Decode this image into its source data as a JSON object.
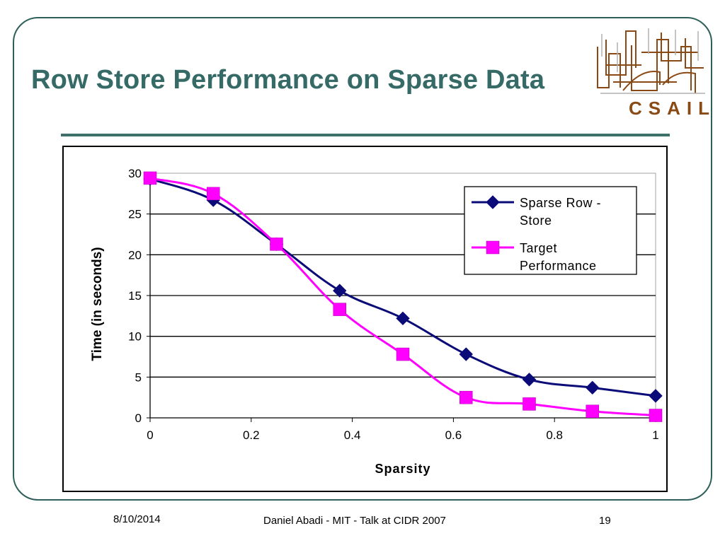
{
  "slide": {
    "title": "Row Store Performance on Sparse Data",
    "logo_text": "CSAIL",
    "footer_date": "8/10/2014",
    "footer_center": "Daniel Abadi - MIT - Talk at CIDR 2007",
    "page_number": "19"
  },
  "colors": {
    "title": "#356a66",
    "series1": "#0a0a78",
    "series2": "#ff00ff",
    "logo_brown": "#8a4a15"
  },
  "chart_data": {
    "type": "line",
    "x": [
      0,
      0.125,
      0.25,
      0.375,
      0.5,
      0.625,
      0.75,
      0.875,
      1.0
    ],
    "series": [
      {
        "name": "Sparse Row - Store",
        "legend_lines": [
          "Sparse Row -",
          "Store"
        ],
        "marker": "diamond",
        "values": [
          29.3,
          26.7,
          21.3,
          15.6,
          12.2,
          7.8,
          4.7,
          3.7,
          2.7
        ]
      },
      {
        "name": "Target Performance",
        "legend_lines": [
          "Target",
          "Performance"
        ],
        "marker": "square",
        "values": [
          29.4,
          27.5,
          21.3,
          13.3,
          7.8,
          2.5,
          1.7,
          0.8,
          0.3
        ]
      }
    ],
    "title": "",
    "xlabel": "Sparsity",
    "ylabel": "Time (in seconds)",
    "xlim": [
      0,
      1
    ],
    "ylim": [
      0,
      30
    ],
    "xticks": [
      0,
      0.2,
      0.4,
      0.6,
      0.8,
      1
    ],
    "xtick_labels": [
      "0",
      "0.2",
      "0.4",
      "0.6",
      "0.8",
      "1"
    ],
    "yticks": [
      0,
      5,
      10,
      15,
      20,
      25,
      30
    ],
    "ytick_labels": [
      "0",
      "5",
      "10",
      "15",
      "20",
      "25",
      "30"
    ],
    "grid": "horizontal",
    "legend_position": "top-right"
  }
}
